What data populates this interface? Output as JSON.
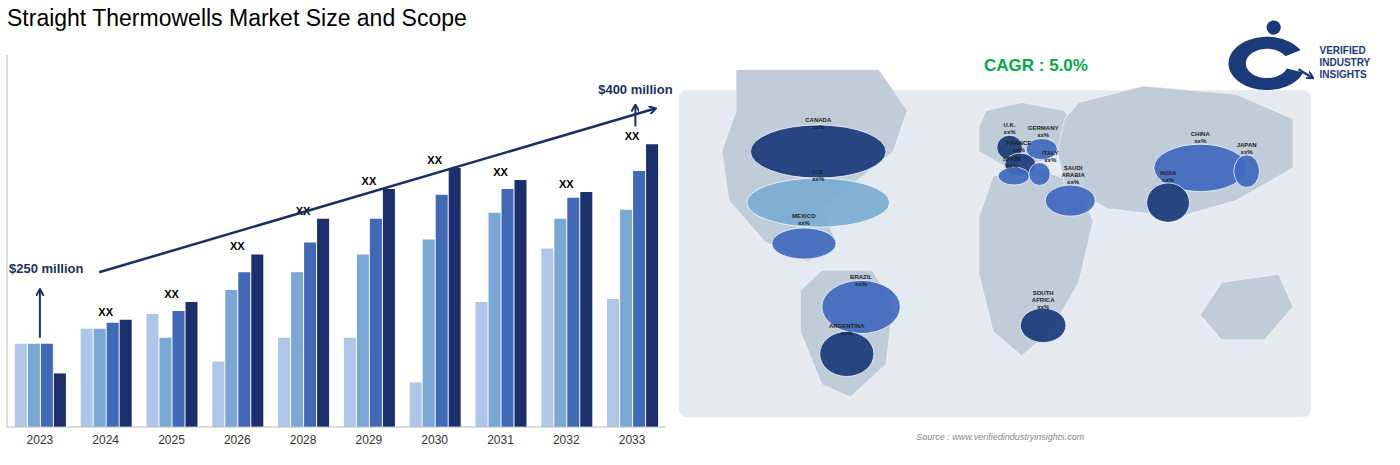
{
  "chart_data": {
    "type": "bar",
    "title": "Straight Thermowells Market Size and Scope",
    "categories": [
      "2023",
      "2024",
      "2025",
      "2026",
      "2028",
      "2029",
      "2030",
      "2031",
      "2032",
      "2033"
    ],
    "series": [
      {
        "color": "#aec6e8",
        "values": [
          0.28,
          0.33,
          0.38,
          0.22,
          0.3,
          0.3,
          0.15,
          0.42,
          0.6,
          0.43
        ]
      },
      {
        "color": "#7ba7d4",
        "values": [
          0.28,
          0.33,
          0.3,
          0.46,
          0.52,
          0.58,
          0.63,
          0.72,
          0.7,
          0.73
        ]
      },
      {
        "color": "#4169b8",
        "values": [
          0.28,
          0.35,
          0.39,
          0.52,
          0.62,
          0.7,
          0.78,
          0.8,
          0.77,
          0.86
        ]
      },
      {
        "color": "#1a2f6b",
        "values": [
          0.18,
          0.36,
          0.42,
          0.58,
          0.7,
          0.8,
          0.87,
          0.83,
          0.79,
          0.95
        ]
      }
    ],
    "ylim": [
      0,
      1.25
    ],
    "yticks": [],
    "tick_labels": "x",
    "grid": false,
    "annotations": [
      {
        "text": "XX",
        "categories": [
          "2024",
          "2025",
          "2026",
          "2028",
          "2029",
          "2030",
          "2031",
          "2032",
          "2033"
        ]
      },
      {
        "text": "$250 million",
        "color": "#1a3060"
      },
      {
        "text": "$400 million",
        "color": "#1a3060"
      },
      {
        "text": "CAGR : 5.0%",
        "color": "#00aa44"
      },
      {
        "text": "Source : www.verifiedindustryinsights.com",
        "color": "#888888"
      },
      {
        "text": "VERIFIED\nINDUSTRY\nINSIGHTS",
        "color": "#1a3a7a"
      }
    ],
    "map_regions": [
      {
        "name": "CANADA\nxx%",
        "color": "#1a3a7a"
      },
      {
        "name": "U.S.\nxx%",
        "color": "#7aaed4"
      },
      {
        "name": "MEXICO\nxx%",
        "color": "#3f6abf"
      },
      {
        "name": "BRAZIL\nxx%",
        "color": "#3f6abf"
      },
      {
        "name": "ARGENTINA\nxx%",
        "color": "#1a3a7a"
      },
      {
        "name": "U.K.\nxx%",
        "color": "#1a3a7a"
      },
      {
        "name": "FRANCE\nxx%",
        "color": "#1a3a7a"
      },
      {
        "name": "GERMANY\nxx%",
        "color": "#3f6abf"
      },
      {
        "name": "SPAIN\nxx%",
        "color": "#3f6abf"
      },
      {
        "name": "ITALY\nxx%",
        "color": "#3f6abf"
      },
      {
        "name": "SAUDI\nARABIA\nxx%",
        "color": "#3f6abf"
      },
      {
        "name": "SOUTH\nAFRICA\nxx%",
        "color": "#1a3a7a"
      },
      {
        "name": "CHINA\nxx%",
        "color": "#3f6abf"
      },
      {
        "name": "INDIA\nxx%",
        "color": "#1a3a7a"
      },
      {
        "name": "JAPAN\nxx%",
        "color": "#3f6abf"
      }
    ]
  }
}
